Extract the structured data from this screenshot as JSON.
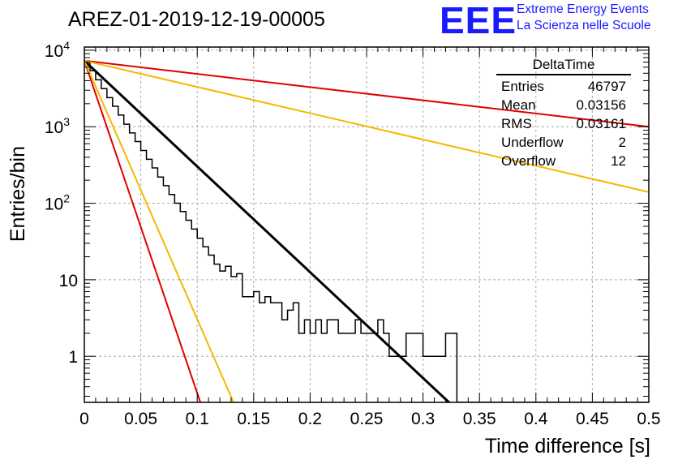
{
  "header": {
    "title": "AREZ-01-2019-12-19-00005",
    "logo": "EEE",
    "logo_line1": "Extreme Energy Events",
    "logo_line2": "La Scienza nelle Scuole"
  },
  "stats_box": {
    "name": "DeltaTime",
    "rows": [
      {
        "label": "Entries",
        "value": "46797"
      },
      {
        "label": "Mean",
        "value": "0.03156"
      },
      {
        "label": "RMS",
        "value": "0.03161"
      },
      {
        "label": "Underflow",
        "value": "2"
      },
      {
        "label": "Overflow",
        "value": "12"
      }
    ]
  },
  "chart_data": {
    "type": "line",
    "title": "AREZ-01-2019-12-19-00005",
    "xlabel": "Time difference [s]",
    "ylabel": "Entries/bin",
    "xlim": [
      0,
      0.5
    ],
    "ylim": [
      0.25,
      11000
    ],
    "yscale": "log",
    "grid": true,
    "x_ticks": [
      "0",
      "0.05",
      "0.1",
      "0.15",
      "0.2",
      "0.25",
      "0.3",
      "0.35",
      "0.4",
      "0.45",
      "0.5"
    ],
    "y_ticks": [
      {
        "value": 1,
        "base": "1",
        "exp": ""
      },
      {
        "value": 10,
        "base": "10",
        "exp": ""
      },
      {
        "value": 100,
        "base": "10",
        "exp": "2"
      },
      {
        "value": 1000,
        "base": "10",
        "exp": "3"
      },
      {
        "value": 10000,
        "base": "10",
        "exp": "4"
      }
    ],
    "histogram": {
      "bin_width": 0.005,
      "counts": [
        7000,
        5400,
        4100,
        3150,
        2400,
        1850,
        1420,
        1080,
        830,
        640,
        490,
        375,
        290,
        220,
        170,
        130,
        100,
        78,
        60,
        46,
        35,
        27,
        21,
        16,
        13,
        15,
        11,
        12,
        6,
        6,
        7,
        5,
        6,
        5,
        5,
        3,
        4,
        5,
        2,
        3,
        2,
        3,
        2,
        3,
        3,
        2,
        2,
        2,
        3,
        2,
        2,
        2,
        3,
        2,
        1,
        1,
        1,
        2,
        2,
        2,
        1,
        1,
        1,
        1,
        2,
        2,
        0,
        0,
        0,
        0,
        0,
        0,
        0,
        0,
        0,
        0,
        0,
        0,
        0,
        0,
        0,
        0,
        0,
        0,
        0,
        0,
        0,
        0,
        0,
        0,
        0,
        0,
        0,
        0,
        0,
        0,
        0,
        0,
        0,
        0
      ]
    },
    "series": [
      {
        "color": "#000000",
        "x": [
          0,
          0.33
        ],
        "y": [
          7300,
          0.2
        ]
      },
      {
        "color": "#e00000",
        "x": [
          0,
          0.105
        ],
        "y": [
          7300,
          0.2
        ]
      },
      {
        "color": "#f5b800",
        "x": [
          0,
          0.135
        ],
        "y": [
          7300,
          0.2
        ]
      },
      {
        "color": "#e00000",
        "x": [
          0,
          0.5
        ],
        "y": [
          7300,
          1000
        ]
      },
      {
        "color": "#f5b800",
        "x": [
          0,
          0.5
        ],
        "y": [
          7300,
          140
        ]
      }
    ]
  }
}
